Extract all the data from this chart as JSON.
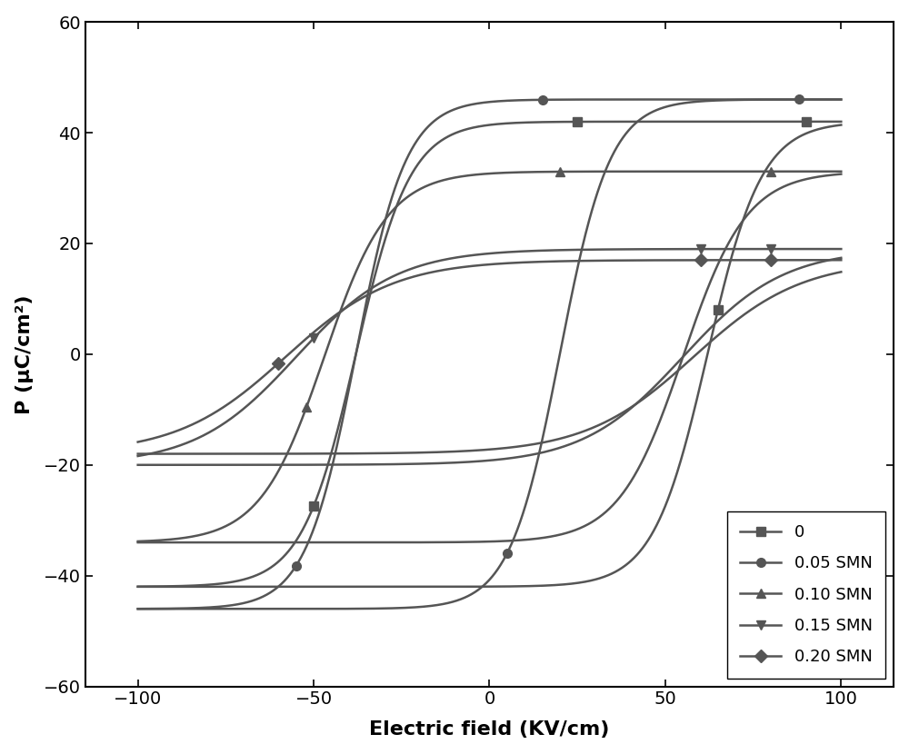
{
  "xlabel": "Electric field (KV/cm)",
  "ylabel": "P (μC/cm²)",
  "xlim": [
    -115,
    115
  ],
  "ylim": [
    -60,
    60
  ],
  "xticks": [
    -100,
    -50,
    0,
    50,
    100
  ],
  "yticks": [
    -60,
    -40,
    -20,
    0,
    20,
    40,
    60
  ],
  "line_color": "#555555",
  "line_width": 1.8,
  "marker_size": 7,
  "xlabel_fontsize": 16,
  "ylabel_fontsize": 16,
  "tick_labelsize": 14,
  "legend_fontsize": 13,
  "loops": [
    {
      "label": "0",
      "marker": "s",
      "E_max": 100,
      "P_sat": 42,
      "P_neg_sat": -42,
      "Ec_upper": -38,
      "Ec_lower": 62,
      "steepness_upper": 0.13,
      "steepness_lower": 0.13,
      "P_rem_upper": -3,
      "P_rem_lower": -3,
      "mk_upper_E": [
        -50,
        25,
        90
      ],
      "mk_lower_E": [
        65
      ]
    },
    {
      "label": "0.05 SMN",
      "marker": "o",
      "E_max": 100,
      "P_sat": 46,
      "P_neg_sat": -46,
      "Ec_upper": -38,
      "Ec_lower": 20,
      "steepness_upper": 0.14,
      "steepness_lower": 0.14,
      "P_rem_upper": -8,
      "P_rem_lower": 35,
      "mk_upper_E": [
        -55,
        15,
        88
      ],
      "mk_lower_E": [
        5
      ]
    },
    {
      "label": "0.10 SMN",
      "marker": "^",
      "E_max": 100,
      "P_sat": 33,
      "P_neg_sat": -34,
      "Ec_upper": -47,
      "Ec_lower": 55,
      "steepness_upper": 0.11,
      "steepness_lower": 0.11,
      "P_rem_upper": 2,
      "P_rem_lower": 2,
      "mk_upper_E": [
        -52,
        20,
        80
      ],
      "mk_lower_E": []
    },
    {
      "label": "0.15 SMN",
      "marker": "v",
      "E_max": 100,
      "P_sat": 19,
      "P_neg_sat": -20,
      "Ec_upper": -55,
      "Ec_lower": 55,
      "steepness_upper": 0.07,
      "steepness_lower": 0.07,
      "P_rem_upper": 3,
      "P_rem_lower": 1,
      "mk_upper_E": [
        -50,
        60,
        80
      ],
      "mk_lower_E": []
    },
    {
      "label": "0.20 SMN",
      "marker": "D",
      "E_max": 100,
      "P_sat": 17,
      "P_neg_sat": -18,
      "Ec_upper": -58,
      "Ec_lower": 58,
      "steepness_upper": 0.065,
      "steepness_lower": 0.065,
      "P_rem_upper": 2,
      "P_rem_lower": 0,
      "mk_upper_E": [
        -60,
        60,
        80
      ],
      "mk_lower_E": []
    }
  ]
}
